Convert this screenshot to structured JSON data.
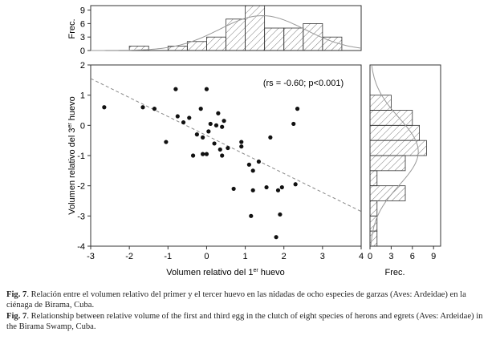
{
  "chart_data": [
    {
      "type": "scatter",
      "xlabel": "Volumen relativo del 1",
      "xlabel_sup": "er",
      "xlabel_tail": " huevo",
      "ylabel": "Volumen relativo del 3",
      "ylabel_sup": "er",
      "ylabel_tail": " huevo",
      "xlim": [
        -3,
        4
      ],
      "ylim": [
        -4,
        2
      ],
      "xticks": [
        -3,
        -2,
        -1,
        0,
        1,
        2,
        3,
        4
      ],
      "yticks": [
        -4,
        -3,
        -2,
        -1,
        0,
        1,
        2
      ],
      "annotation": "(rs = -0.60; p<0.001)",
      "trend_line": {
        "x": [
          -3,
          4
        ],
        "y": [
          1.55,
          -2.85
        ]
      },
      "points": [
        {
          "x": -2.65,
          "y": 0.6
        },
        {
          "x": -1.65,
          "y": 0.6
        },
        {
          "x": -1.35,
          "y": 0.55
        },
        {
          "x": -1.05,
          "y": -0.55
        },
        {
          "x": -0.8,
          "y": 1.2
        },
        {
          "x": -0.75,
          "y": 0.3
        },
        {
          "x": -0.6,
          "y": 0.1
        },
        {
          "x": -0.45,
          "y": 0.25
        },
        {
          "x": -0.35,
          "y": -1.0
        },
        {
          "x": -0.25,
          "y": -0.3
        },
        {
          "x": -0.15,
          "y": 0.55
        },
        {
          "x": -0.1,
          "y": -0.4
        },
        {
          "x": -0.1,
          "y": -0.95
        },
        {
          "x": 0.0,
          "y": 1.2
        },
        {
          "x": 0.0,
          "y": -0.95
        },
        {
          "x": 0.05,
          "y": -0.2
        },
        {
          "x": 0.1,
          "y": 0.05
        },
        {
          "x": 0.2,
          "y": -0.6
        },
        {
          "x": 0.25,
          "y": 0.0
        },
        {
          "x": 0.3,
          "y": 0.4
        },
        {
          "x": 0.35,
          "y": -0.8
        },
        {
          "x": 0.4,
          "y": -1.0
        },
        {
          "x": 0.4,
          "y": -0.05
        },
        {
          "x": 0.45,
          "y": 0.15
        },
        {
          "x": 0.55,
          "y": -0.75
        },
        {
          "x": 0.7,
          "y": -2.1
        },
        {
          "x": 0.9,
          "y": -0.55
        },
        {
          "x": 0.9,
          "y": -0.7
        },
        {
          "x": 1.1,
          "y": -1.3
        },
        {
          "x": 1.15,
          "y": -3.0
        },
        {
          "x": 1.2,
          "y": -1.5
        },
        {
          "x": 1.2,
          "y": -2.15
        },
        {
          "x": 1.35,
          "y": -1.2
        },
        {
          "x": 1.55,
          "y": -2.05
        },
        {
          "x": 1.65,
          "y": -0.4
        },
        {
          "x": 1.8,
          "y": -3.7
        },
        {
          "x": 1.85,
          "y": -2.15
        },
        {
          "x": 1.9,
          "y": -2.95
        },
        {
          "x": 1.95,
          "y": -2.05
        },
        {
          "x": 2.25,
          "y": 0.05
        },
        {
          "x": 2.3,
          "y": -1.95
        },
        {
          "x": 2.35,
          "y": 0.55
        }
      ]
    },
    {
      "type": "bar",
      "orientation": "vertical",
      "ylabel": "Frec.",
      "ylim": [
        0,
        10
      ],
      "yticks": [
        0,
        3,
        6,
        9
      ],
      "bins": [
        {
          "from": -2.5,
          "to": -2.0,
          "count": 0
        },
        {
          "from": -2.0,
          "to": -1.5,
          "count": 1
        },
        {
          "from": -1.5,
          "to": -1.0,
          "count": 0
        },
        {
          "from": -1.0,
          "to": -0.5,
          "count": 1
        },
        {
          "from": -0.5,
          "to": 0.0,
          "count": 2
        },
        {
          "from": 0.0,
          "to": 0.5,
          "count": 3
        },
        {
          "from": 0.5,
          "to": 1.0,
          "count": 7
        },
        {
          "from": 1.0,
          "to": 1.5,
          "count": 10
        },
        {
          "from": 1.5,
          "to": 2.0,
          "count": 5
        },
        {
          "from": 2.0,
          "to": 2.5,
          "count": 5
        },
        {
          "from": 2.5,
          "to": 3.0,
          "count": 6
        },
        {
          "from": 3.0,
          "to": 3.5,
          "count": 3
        }
      ],
      "fitted_curve": "normal"
    },
    {
      "type": "bar",
      "orientation": "horizontal",
      "xlabel": "Frec.",
      "xlim": [
        0,
        10
      ],
      "xticks": [
        0,
        3,
        6,
        9
      ],
      "bins": [
        {
          "from": 0.5,
          "to": 1.0,
          "count": 3
        },
        {
          "from": 0.0,
          "to": 0.5,
          "count": 6
        },
        {
          "from": -0.5,
          "to": 0.0,
          "count": 7
        },
        {
          "from": -1.0,
          "to": -0.5,
          "count": 8
        },
        {
          "from": -1.5,
          "to": -1.0,
          "count": 5
        },
        {
          "from": -2.0,
          "to": -1.5,
          "count": 1
        },
        {
          "from": -2.5,
          "to": -2.0,
          "count": 5
        },
        {
          "from": -3.0,
          "to": -2.5,
          "count": 1
        },
        {
          "from": -3.5,
          "to": -3.0,
          "count": 1
        },
        {
          "from": -4.0,
          "to": -3.5,
          "count": 1
        }
      ],
      "fitted_curve": "normal"
    }
  ],
  "captions": {
    "es_label": "Fig. 7",
    "es_text": ". Relación entre el volumen relativo del primer y el tercer huevo en las nidadas de ocho especies de garzas (Aves: Ardeidae) en la ciénaga de Birama, Cuba.",
    "en_label": "Fig. 7",
    "en_text": ". Relationship between relative volume of the first and third egg in the clutch of eight species of herons and egrets (Aves: Ardeidae) in the Birama Swamp, Cuba."
  }
}
